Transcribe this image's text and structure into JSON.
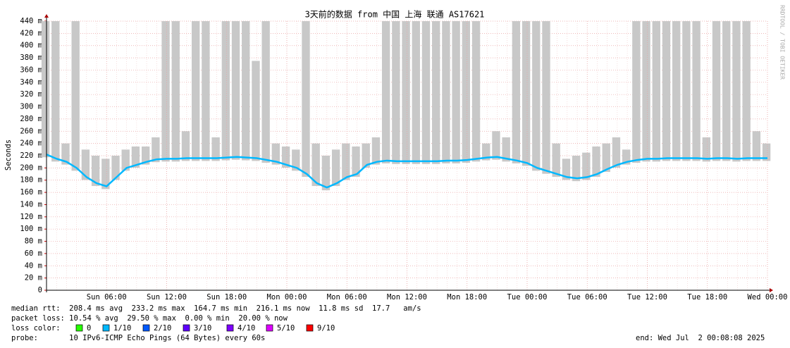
{
  "chart_data": {
    "type": "line",
    "title": "3天前的数据 from 中国 上海 联通 AS17621",
    "y_label": "Seconds",
    "side_text": "RRDTOOL / TOBI OETIKER",
    "categories": [
      null,
      null,
      null,
      null,
      null,
      null,
      "Sun 06:00",
      null,
      null,
      null,
      null,
      null,
      "Sun 12:00",
      null,
      null,
      null,
      null,
      null,
      "Sun 18:00",
      null,
      null,
      null,
      null,
      null,
      "Mon 00:00",
      null,
      null,
      null,
      null,
      null,
      "Mon 06:00",
      null,
      null,
      null,
      null,
      null,
      "Mon 12:00",
      null,
      null,
      null,
      null,
      null,
      "Mon 18:00",
      null,
      null,
      null,
      null,
      null,
      "Tue 00:00",
      null,
      null,
      null,
      null,
      null,
      "Tue 06:00",
      null,
      null,
      null,
      null,
      null,
      "Tue 12:00",
      null,
      null,
      null,
      null,
      null,
      "Tue 18:00",
      null,
      null,
      null,
      null,
      null,
      "Wed 00:00"
    ],
    "series": [
      {
        "color": "#00b8ff",
        "values": [
          0.222,
          0.215,
          0.21,
          0.2,
          0.185,
          0.175,
          0.17,
          0.185,
          0.2,
          0.205,
          0.21,
          0.214,
          0.215,
          0.215,
          0.216,
          0.216,
          0.216,
          0.216,
          0.217,
          0.218,
          0.217,
          0.216,
          0.213,
          0.21,
          0.205,
          0.2,
          0.19,
          0.175,
          0.168,
          0.175,
          0.185,
          0.19,
          0.205,
          0.21,
          0.212,
          0.211,
          0.211,
          0.211,
          0.211,
          0.211,
          0.212,
          0.212,
          0.213,
          0.215,
          0.217,
          0.218,
          0.215,
          0.212,
          0.208,
          0.2,
          0.195,
          0.19,
          0.185,
          0.183,
          0.185,
          0.19,
          0.198,
          0.205,
          0.21,
          0.213,
          0.215,
          0.215,
          0.216,
          0.216,
          0.216,
          0.216,
          0.215,
          0.216,
          0.216,
          0.215,
          0.216,
          0.216,
          0.216
        ]
      }
    ],
    "smoke": {
      "color": "#c8c8c8",
      "values": [
        0.44,
        0.44,
        0.24,
        0.44,
        0.23,
        0.22,
        0.215,
        0.22,
        0.23,
        0.235,
        0.235,
        0.25,
        0.44,
        0.44,
        0.26,
        0.44,
        0.44,
        0.25,
        0.44,
        0.44,
        0.44,
        0.375,
        0.44,
        0.24,
        0.235,
        0.23,
        0.44,
        0.24,
        0.22,
        0.23,
        0.24,
        0.235,
        0.24,
        0.25,
        0.44,
        0.44,
        0.44,
        0.44,
        0.44,
        0.44,
        0.44,
        0.44,
        0.44,
        0.44,
        0.24,
        0.26,
        0.25,
        0.44,
        0.44,
        0.44,
        0.44,
        0.24,
        0.215,
        0.22,
        0.225,
        0.235,
        0.24,
        0.25,
        0.23,
        0.44,
        0.44,
        0.44,
        0.44,
        0.44,
        0.44,
        0.44,
        0.25,
        0.44,
        0.44,
        0.44,
        0.44,
        0.26,
        0.24
      ]
    },
    "ylim": [
      0,
      0.44
    ],
    "yticks": [
      0,
      {
        "value": 0.02,
        "label": "20 m"
      },
      {
        "value": 0.04,
        "label": "40 m"
      },
      {
        "value": 0.06,
        "label": "60 m"
      },
      {
        "value": 0.08,
        "label": "80 m"
      },
      {
        "value": 0.1,
        "label": "100 m"
      },
      {
        "value": 0.12,
        "label": "120 m"
      },
      {
        "value": 0.14,
        "label": "140 m"
      },
      {
        "value": 0.16,
        "label": "160 m"
      },
      {
        "value": 0.18,
        "label": "180 m"
      },
      {
        "value": 0.2,
        "label": "200 m"
      },
      {
        "value": 0.22,
        "label": "220 m"
      },
      {
        "value": 0.24,
        "label": "240 m"
      },
      {
        "value": 0.26,
        "label": "260 m"
      },
      {
        "value": 0.28,
        "label": "280 m"
      },
      {
        "value": 0.3,
        "label": "300 m"
      },
      {
        "value": 0.32,
        "label": "320 m"
      },
      {
        "value": 0.34,
        "label": "340 m"
      },
      {
        "value": 0.36,
        "label": "360 m"
      },
      {
        "value": 0.38,
        "label": "380 m"
      },
      {
        "value": 0.4,
        "label": "400 m"
      },
      {
        "value": 0.42,
        "label": "420 m"
      },
      {
        "value": 0.44,
        "label": "440 m"
      }
    ],
    "grid": true,
    "footer": {
      "median": "median rtt:  208.4 ms avg  233.2 ms max  164.7 ms min  216.1 ms now  11.8 ms sd  17.7   am/s",
      "loss": "packet loss: 10.54 % avg  29.50 % max  0.00 % min  20.00 % now",
      "loss_color_label": "loss color:",
      "loss_colors": [
        {
          "label": "0",
          "color": "#26ff00"
        },
        {
          "label": "1/10",
          "color": "#00b8ff"
        },
        {
          "label": "2/10",
          "color": "#0059ff"
        },
        {
          "label": "3/10",
          "color": "#5e00ff"
        },
        {
          "label": "4/10",
          "color": "#7e00ff"
        },
        {
          "label": "5/10",
          "color": "#dd00ff"
        },
        {
          "label": "9/10",
          "color": "#ff0000"
        }
      ],
      "probe": "probe:       10 IPv6-ICMP Echo Pings (64 Bytes) every 60s",
      "end": "end: Wed Jul  2 00:08:08 2025"
    }
  }
}
